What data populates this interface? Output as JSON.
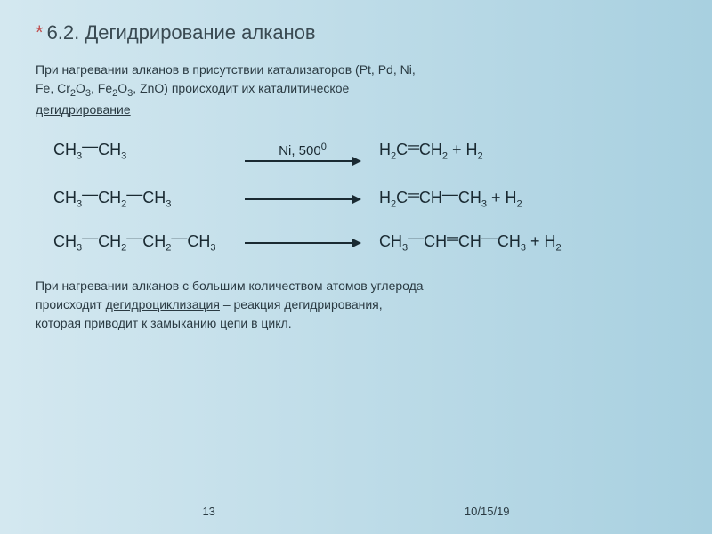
{
  "colors": {
    "bg_start": "#d4e8f0",
    "bg_end": "#a8d0e0",
    "title_color": "#3a4a52",
    "text_color": "#2a3a42",
    "asterisk_color": "#c05050",
    "formula_color": "#1a2a32"
  },
  "title": {
    "number": "6.2.",
    "text": "Дегидрирование алканов"
  },
  "intro": {
    "line1": "При нагревании алканов в присутствии катализаторов (Pt, Pd, Ni,",
    "line2_pre": "Fe, Cr",
    "line2_cr_sub": "2",
    "line2_o": "O",
    "line2_cr_sub2": "3",
    "line2_mid": ", Fe",
    "line2_fe_sub": "2",
    "line2_o2": "O",
    "line2_fe_sub2": "3",
    "line2_post": ", ZnO) происходит их каталитическое",
    "line3": "дегидрирование"
  },
  "reactions": [
    {
      "reactant_html": "CH<sub>3</sub>—CH<sub>3</sub>",
      "arrow_label_html": "Ni, 500<sup>0</sup>",
      "product_html": "H<sub>2</sub>C==CH<sub>2</sub>  +  H<sub>2</sub>",
      "has_label": true
    },
    {
      "reactant_html": "CH<sub>3</sub>—CH<sub>2</sub>—CH<sub>3</sub>",
      "product_html": "H<sub>2</sub>C==CH—CH<sub>3</sub>  +  H<sub>2</sub>",
      "has_label": false
    },
    {
      "reactant_html": "CH<sub>3</sub>—CH<sub>2</sub>—CH<sub>2</sub>—CH<sub>3</sub>",
      "product_html": "CH<sub>3</sub>—CH==CH—CH<sub>3</sub>  +  H<sub>2</sub>",
      "has_label": false
    }
  ],
  "closing": {
    "line1": "При нагревании алканов с большим количеством атомов углерода",
    "line2_pre": "происходит ",
    "line2_underline": "дегидроциклизация",
    "line2_post": " – реакция дегидрирования,",
    "line3": "которая приводит к замыканию цепи в цикл."
  },
  "footer": {
    "page": "13",
    "date": "10/15/19"
  },
  "typography": {
    "title_fontsize": 22,
    "body_fontsize": 14,
    "formula_fontsize": 18,
    "footer_fontsize": 13
  }
}
